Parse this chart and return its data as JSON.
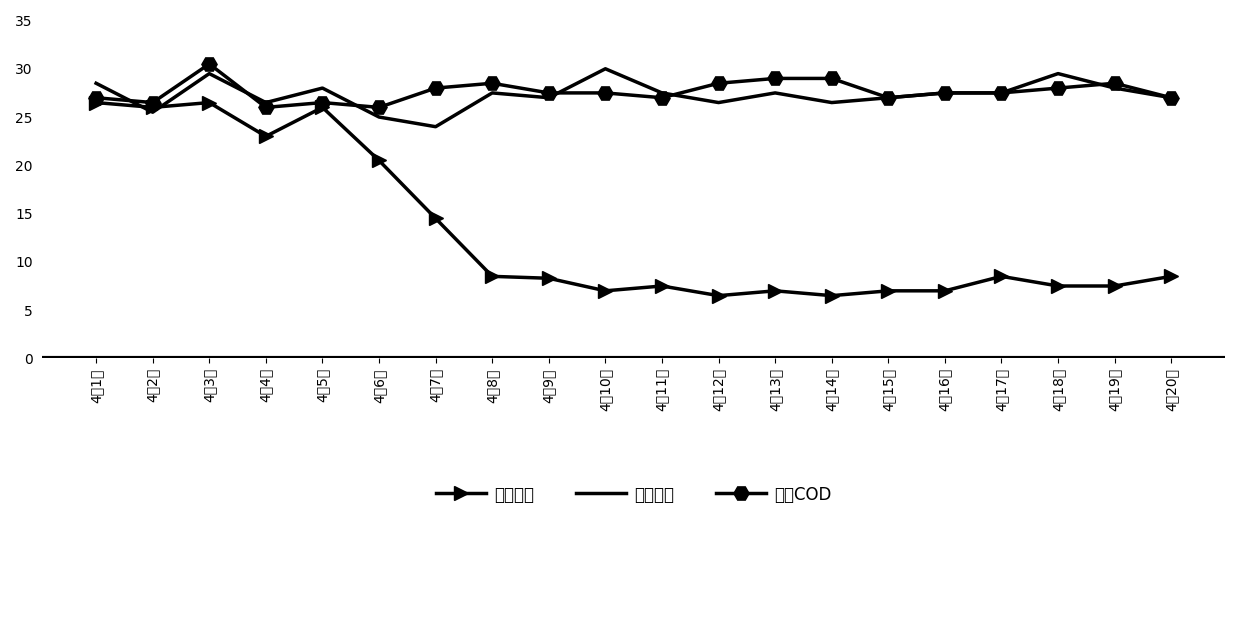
{
  "x_labels": [
    "4月1日",
    "4月2日",
    "4月3日",
    "4月4日",
    "4月5日",
    "4月6日",
    "4月7日",
    "4月8日",
    "4月9日",
    "4月10日",
    "4月11日",
    "4月12日",
    "4月13日",
    "4月14日",
    "4月15日",
    "4月16日",
    "4月17日",
    "4月18日",
    "4月19日",
    "4月20日"
  ],
  "series_zongdan": [
    26.5,
    26.0,
    26.5,
    23.0,
    26.0,
    20.5,
    14.5,
    8.5,
    8.3,
    7.0,
    7.5,
    6.5,
    7.0,
    6.5,
    7.0,
    7.0,
    8.5,
    7.5,
    7.5,
    8.5
  ],
  "series_zonglin": [
    28.5,
    25.5,
    29.5,
    26.5,
    28.0,
    25.0,
    24.0,
    27.5,
    27.0,
    30.0,
    27.5,
    26.5,
    27.5,
    26.5,
    27.0,
    27.5,
    27.5,
    29.5,
    28.0,
    27.0
  ],
  "series_cod": [
    27.0,
    26.5,
    30.5,
    26.0,
    26.5,
    26.0,
    28.0,
    28.5,
    27.5,
    27.5,
    27.0,
    28.5,
    29.0,
    29.0,
    27.0,
    27.5,
    27.5,
    28.0,
    28.5,
    27.0
  ],
  "legend_zongdan": "出水总氮",
  "legend_zonglin": "出水总磷",
  "legend_cod": "出水COD",
  "ylim": [
    0,
    35
  ],
  "yticks": [
    0,
    5,
    10,
    15,
    20,
    25,
    30,
    35
  ],
  "line_color": "#000000",
  "bg_color": "#ffffff",
  "fontsize_tick": 10,
  "fontsize_legend": 12,
  "linewidth": 2.5,
  "marker_size_arrow": 10,
  "marker_size_hex": 11
}
